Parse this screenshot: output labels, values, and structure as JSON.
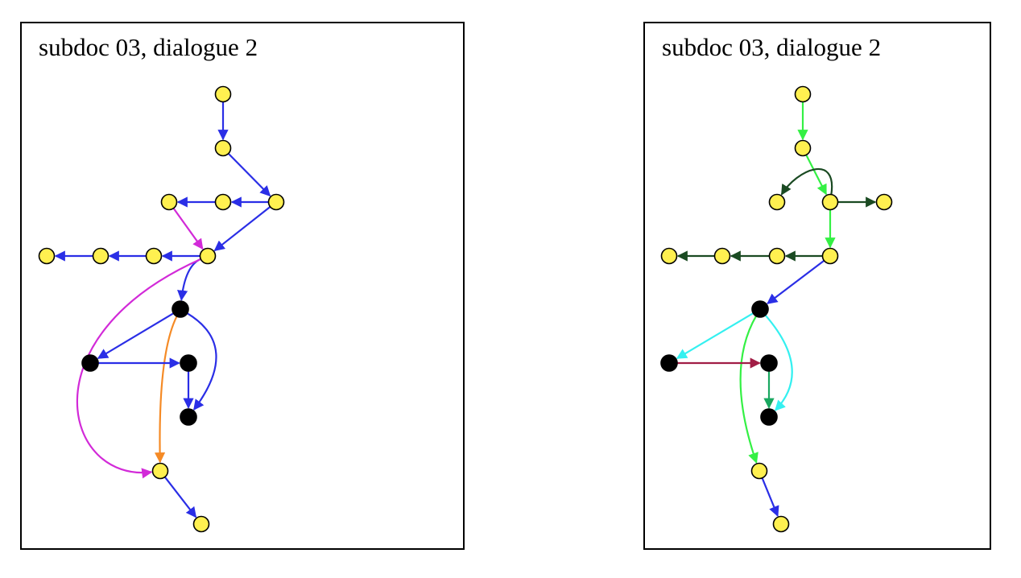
{
  "panels": [
    {
      "id": "left",
      "title": "subdoc 03, dialogue 2",
      "nodes": [
        {
          "id": "n1",
          "kind": "yellow"
        },
        {
          "id": "n2",
          "kind": "yellow"
        },
        {
          "id": "n3",
          "kind": "yellow"
        },
        {
          "id": "n4",
          "kind": "yellow"
        },
        {
          "id": "n5",
          "kind": "yellow"
        },
        {
          "id": "n6",
          "kind": "yellow"
        },
        {
          "id": "n7",
          "kind": "yellow"
        },
        {
          "id": "n8",
          "kind": "yellow"
        },
        {
          "id": "n9",
          "kind": "yellow"
        },
        {
          "id": "b1",
          "kind": "black"
        },
        {
          "id": "b2",
          "kind": "black"
        },
        {
          "id": "b3",
          "kind": "black"
        },
        {
          "id": "b4",
          "kind": "black"
        },
        {
          "id": "n10",
          "kind": "yellow"
        },
        {
          "id": "n11",
          "kind": "yellow"
        }
      ],
      "edges": [
        {
          "from": "n1",
          "to": "n2",
          "color": "blue"
        },
        {
          "from": "n2",
          "to": "n3",
          "color": "blue"
        },
        {
          "from": "n3",
          "to": "n4",
          "color": "blue"
        },
        {
          "from": "n4",
          "to": "n5",
          "color": "blue"
        },
        {
          "from": "n3",
          "to": "n6",
          "color": "blue"
        },
        {
          "from": "n5",
          "to": "n6",
          "color": "magenta"
        },
        {
          "from": "n6",
          "to": "n7",
          "color": "blue"
        },
        {
          "from": "n7",
          "to": "n8",
          "color": "blue"
        },
        {
          "from": "n8",
          "to": "n9",
          "color": "blue"
        },
        {
          "from": "n6",
          "to": "b1",
          "color": "blue"
        },
        {
          "from": "n6",
          "to": "n10",
          "color": "magenta"
        },
        {
          "from": "b1",
          "to": "b2",
          "color": "blue"
        },
        {
          "from": "b1",
          "to": "n10",
          "color": "orange"
        },
        {
          "from": "b1",
          "to": "b4",
          "color": "blue"
        },
        {
          "from": "b2",
          "to": "b3",
          "color": "blue"
        },
        {
          "from": "b3",
          "to": "b4",
          "color": "blue"
        },
        {
          "from": "n10",
          "to": "n11",
          "color": "blue"
        }
      ]
    },
    {
      "id": "right",
      "title": "subdoc 03, dialogue 2",
      "nodes": [
        {
          "id": "n1",
          "kind": "yellow"
        },
        {
          "id": "n2",
          "kind": "yellow"
        },
        {
          "id": "n3",
          "kind": "yellow"
        },
        {
          "id": "n4",
          "kind": "yellow"
        },
        {
          "id": "n5",
          "kind": "yellow"
        },
        {
          "id": "n6",
          "kind": "yellow"
        },
        {
          "id": "n7",
          "kind": "yellow"
        },
        {
          "id": "n8",
          "kind": "yellow"
        },
        {
          "id": "n9",
          "kind": "yellow"
        },
        {
          "id": "b1",
          "kind": "black"
        },
        {
          "id": "b2",
          "kind": "black"
        },
        {
          "id": "b3",
          "kind": "black"
        },
        {
          "id": "b4",
          "kind": "black"
        },
        {
          "id": "n10",
          "kind": "yellow"
        },
        {
          "id": "n11",
          "kind": "yellow"
        }
      ],
      "edges": [
        {
          "from": "n1",
          "to": "n2",
          "color": "bright-green"
        },
        {
          "from": "n2",
          "to": "n3",
          "color": "bright-green"
        },
        {
          "from": "n3",
          "to": "n4",
          "color": "dark-green"
        },
        {
          "from": "n3",
          "to": "n5",
          "color": "dark-green"
        },
        {
          "from": "n3",
          "to": "n6",
          "color": "bright-green"
        },
        {
          "from": "n6",
          "to": "n7",
          "color": "dark-green"
        },
        {
          "from": "n7",
          "to": "n8",
          "color": "dark-green"
        },
        {
          "from": "n8",
          "to": "n9",
          "color": "dark-green"
        },
        {
          "from": "n6",
          "to": "b1",
          "color": "blue"
        },
        {
          "from": "b1",
          "to": "b2",
          "color": "cyan"
        },
        {
          "from": "b1",
          "to": "b4",
          "color": "cyan"
        },
        {
          "from": "b1",
          "to": "n10",
          "color": "bright-green"
        },
        {
          "from": "b2",
          "to": "b3",
          "color": "crimson"
        },
        {
          "from": "b3",
          "to": "b4",
          "color": "teal-green"
        },
        {
          "from": "n10",
          "to": "n11",
          "color": "blue"
        }
      ]
    }
  ],
  "colors": {
    "blue": "#2a2ee6",
    "magenta": "#d22ad8",
    "orange": "#f58a25",
    "bright-green": "#34f044",
    "dark-green": "#1a4a22",
    "cyan": "#34f0f0",
    "crimson": "#a11d45",
    "teal-green": "#1aa860",
    "node-yellow": "#fff050",
    "node-black": "#000000"
  }
}
